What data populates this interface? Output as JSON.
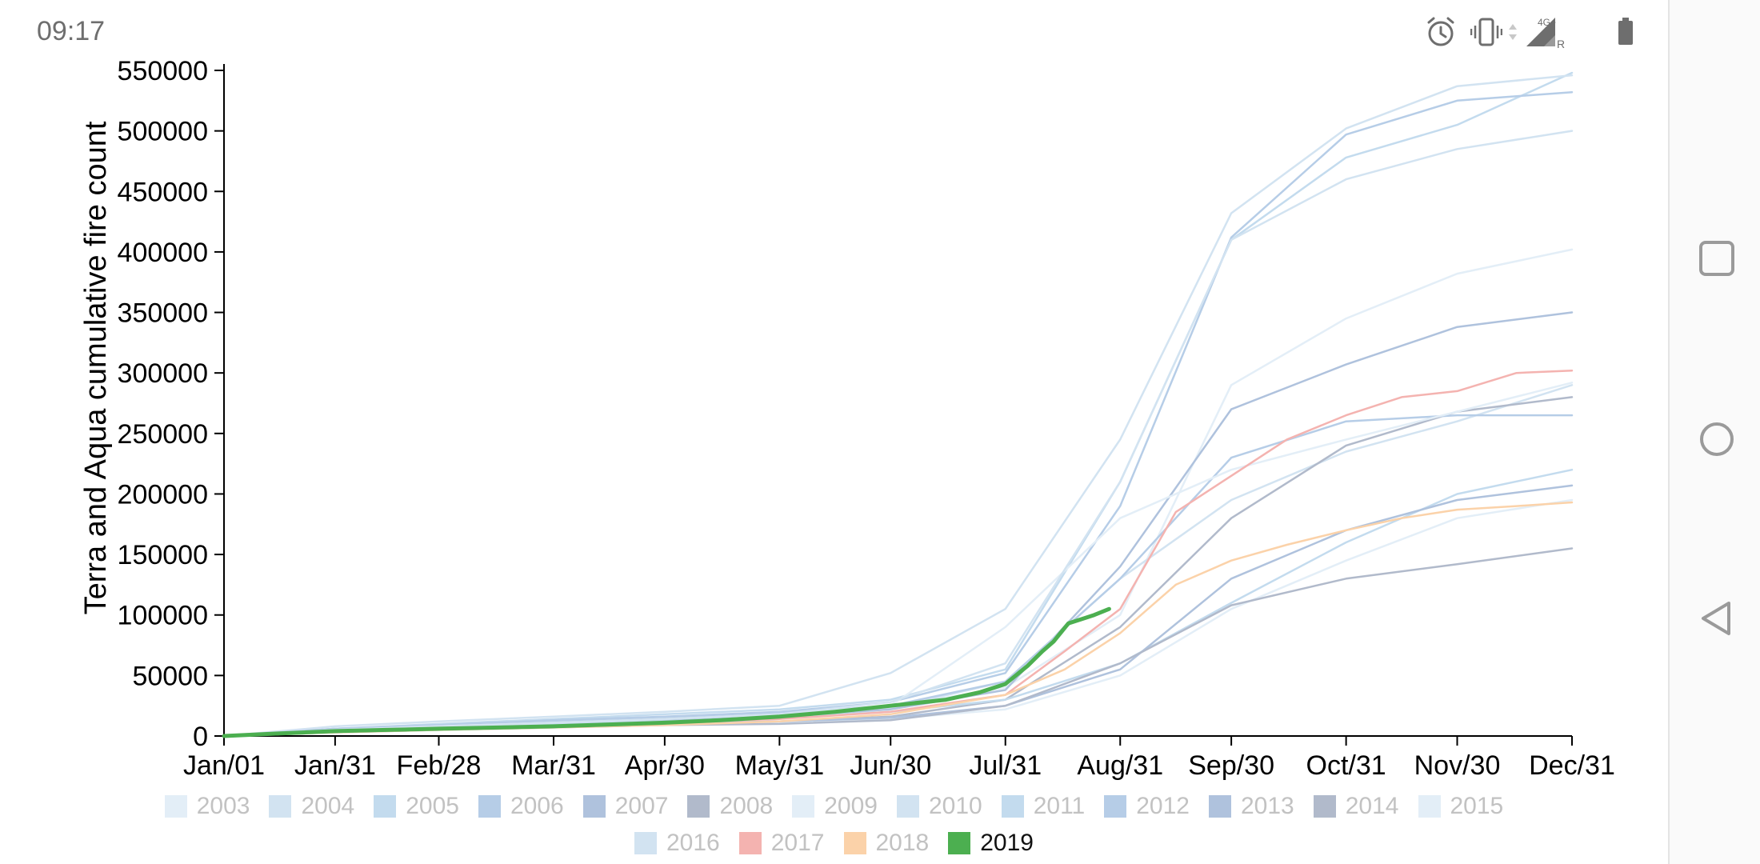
{
  "status_bar": {
    "time": "09:17",
    "icons": [
      "alarm-icon",
      "vibrate-icon",
      "data-arrows-icon",
      "signal-4g-icon",
      "battery-icon"
    ],
    "network_label": "4G+",
    "roaming_label": "R"
  },
  "nav_bar": {
    "buttons": [
      "recent-apps-button",
      "home-button",
      "back-button"
    ]
  },
  "chart_data": {
    "type": "line",
    "ylabel": "Terra and Aqua cumulative fire count",
    "xlabel": "",
    "ylim": [
      0,
      550000
    ],
    "yticks": [
      0,
      50000,
      100000,
      150000,
      200000,
      250000,
      300000,
      350000,
      400000,
      450000,
      500000,
      550000
    ],
    "xlim": [
      1,
      365
    ],
    "xtick_days": [
      1,
      31,
      59,
      90,
      120,
      151,
      181,
      212,
      243,
      273,
      304,
      334,
      365
    ],
    "xtick_labels": [
      "Jan/01",
      "Jan/31",
      "Feb/28",
      "Mar/31",
      "Apr/30",
      "May/31",
      "Jun/30",
      "Jul/31",
      "Aug/31",
      "Sep/30",
      "Oct/31",
      "Nov/30",
      "Dec/31"
    ],
    "grid": false,
    "legend_placement": "bottom",
    "highlight_series": "2019",
    "colors": {
      "2003": "#e3eef7",
      "2004": "#d2e3f1",
      "2005": "#c3dbee",
      "2006": "#b6cde7",
      "2007": "#afc2dd",
      "2008": "#b1bacb",
      "2009": "#e3eef7",
      "2010": "#d2e3f1",
      "2011": "#c3dbee",
      "2012": "#b6cde7",
      "2013": "#afc2dd",
      "2014": "#b1bacb",
      "2015": "#e3eef7",
      "2016": "#d2e3f1",
      "2017": "#f4b3b0",
      "2018": "#fbd2a9",
      "2019": "#4caf50"
    },
    "series": [
      {
        "name": "2003",
        "x": [
          1,
          31,
          59,
          90,
          120,
          151,
          181,
          212,
          243,
          273,
          304,
          334,
          365
        ],
        "y": [
          0,
          6000,
          9000,
          12000,
          15000,
          19000,
          24000,
          40000,
          100000,
          290000,
          345000,
          382000,
          402000
        ]
      },
      {
        "name": "2004",
        "x": [
          1,
          31,
          59,
          90,
          120,
          151,
          181,
          212,
          243,
          273,
          304,
          334,
          365
        ],
        "y": [
          0,
          5000,
          8000,
          11000,
          14000,
          18000,
          23000,
          45000,
          130000,
          195000,
          235000,
          260000,
          290000
        ]
      },
      {
        "name": "2005",
        "x": [
          1,
          31,
          59,
          90,
          120,
          151,
          181,
          212,
          243,
          273,
          304,
          334,
          365
        ],
        "y": [
          0,
          6000,
          10000,
          14000,
          18000,
          22000,
          30000,
          55000,
          210000,
          410000,
          478000,
          505000,
          548000
        ]
      },
      {
        "name": "2006",
        "x": [
          1,
          31,
          59,
          90,
          120,
          151,
          181,
          212,
          243,
          273,
          304,
          334,
          365
        ],
        "y": [
          0,
          6000,
          9000,
          13000,
          16000,
          20000,
          28000,
          52000,
          190000,
          412000,
          497000,
          525000,
          532000
        ]
      },
      {
        "name": "2007",
        "x": [
          1,
          31,
          59,
          90,
          120,
          151,
          181,
          212,
          243,
          273,
          304,
          334,
          365
        ],
        "y": [
          0,
          5000,
          7000,
          10000,
          13000,
          16000,
          22000,
          38000,
          140000,
          270000,
          307000,
          338000,
          350000
        ]
      },
      {
        "name": "2008",
        "x": [
          1,
          31,
          59,
          90,
          120,
          151,
          181,
          212,
          243,
          273,
          304,
          334,
          365
        ],
        "y": [
          0,
          4000,
          6000,
          8000,
          10000,
          12000,
          16000,
          30000,
          90000,
          180000,
          240000,
          268000,
          280000
        ]
      },
      {
        "name": "2009",
        "x": [
          1,
          31,
          59,
          90,
          120,
          151,
          181,
          212,
          243,
          273,
          304,
          334,
          365
        ],
        "y": [
          0,
          3000,
          5000,
          7000,
          9000,
          11000,
          14000,
          22000,
          50000,
          105000,
          145000,
          180000,
          195000
        ]
      },
      {
        "name": "2010",
        "x": [
          1,
          31,
          59,
          90,
          120,
          151,
          181,
          212,
          243,
          273,
          304,
          334,
          365
        ],
        "y": [
          0,
          8000,
          12000,
          16000,
          20000,
          25000,
          52000,
          105000,
          245000,
          432000,
          502000,
          537000,
          546000
        ]
      },
      {
        "name": "2011",
        "x": [
          1,
          31,
          59,
          90,
          120,
          151,
          181,
          212,
          243,
          273,
          304,
          334,
          365
        ],
        "y": [
          0,
          5000,
          7000,
          10000,
          12000,
          15000,
          20000,
          30000,
          60000,
          110000,
          160000,
          200000,
          220000
        ]
      },
      {
        "name": "2012",
        "x": [
          1,
          31,
          59,
          90,
          120,
          151,
          181,
          212,
          243,
          273,
          304,
          334,
          365
        ],
        "y": [
          0,
          6000,
          9000,
          12000,
          15000,
          19000,
          25000,
          45000,
          130000,
          230000,
          260000,
          265000,
          265000
        ]
      },
      {
        "name": "2013",
        "x": [
          1,
          31,
          59,
          90,
          120,
          151,
          181,
          212,
          243,
          273,
          304,
          334,
          365
        ],
        "y": [
          0,
          4000,
          6000,
          8000,
          10000,
          12000,
          15000,
          25000,
          55000,
          130000,
          170000,
          195000,
          207000
        ]
      },
      {
        "name": "2014",
        "x": [
          1,
          31,
          59,
          90,
          120,
          151,
          181,
          212,
          243,
          273,
          304,
          334,
          365
        ],
        "y": [
          0,
          3000,
          5000,
          7000,
          9000,
          10000,
          13000,
          25000,
          60000,
          108000,
          130000,
          142000,
          155000
        ]
      },
      {
        "name": "2015",
        "x": [
          1,
          31,
          59,
          90,
          120,
          151,
          181,
          212,
          243,
          273,
          304,
          334,
          365
        ],
        "y": [
          0,
          5000,
          8000,
          11000,
          14000,
          18000,
          25000,
          90000,
          180000,
          220000,
          245000,
          268000,
          292000
        ]
      },
      {
        "name": "2016",
        "x": [
          1,
          31,
          59,
          90,
          120,
          151,
          181,
          212,
          243,
          273,
          304,
          334,
          365
        ],
        "y": [
          0,
          5000,
          8000,
          11000,
          14000,
          18000,
          28000,
          60000,
          210000,
          410000,
          460000,
          485000,
          500000
        ]
      },
      {
        "name": "2017",
        "x": [
          1,
          31,
          59,
          90,
          120,
          151,
          181,
          212,
          228,
          243,
          258,
          273,
          288,
          304,
          319,
          334,
          350,
          365
        ],
        "y": [
          0,
          4000,
          6000,
          8000,
          11000,
          14000,
          20000,
          34000,
          70000,
          105000,
          185000,
          215000,
          245000,
          265000,
          280000,
          285000,
          300000,
          302000
        ]
      },
      {
        "name": "2018",
        "x": [
          1,
          31,
          59,
          90,
          120,
          151,
          181,
          212,
          228,
          243,
          258,
          273,
          288,
          304,
          319,
          334,
          350,
          365
        ],
        "y": [
          0,
          3000,
          5000,
          7000,
          9000,
          12000,
          18000,
          34000,
          55000,
          85000,
          125000,
          145000,
          158000,
          170000,
          180000,
          187000,
          190000,
          193000
        ]
      },
      {
        "name": "2019",
        "x": [
          1,
          15,
          31,
          45,
          59,
          75,
          90,
          105,
          120,
          135,
          151,
          166,
          181,
          196,
          205,
          212,
          218,
          222,
          225,
          229,
          233,
          236,
          240
        ],
        "y": [
          0,
          2000,
          4000,
          5000,
          6000,
          7000,
          8000,
          9500,
          11000,
          13000,
          16000,
          20000,
          25000,
          30000,
          36000,
          43000,
          58000,
          70000,
          78000,
          93000,
          97000,
          100000,
          105000
        ]
      }
    ]
  }
}
